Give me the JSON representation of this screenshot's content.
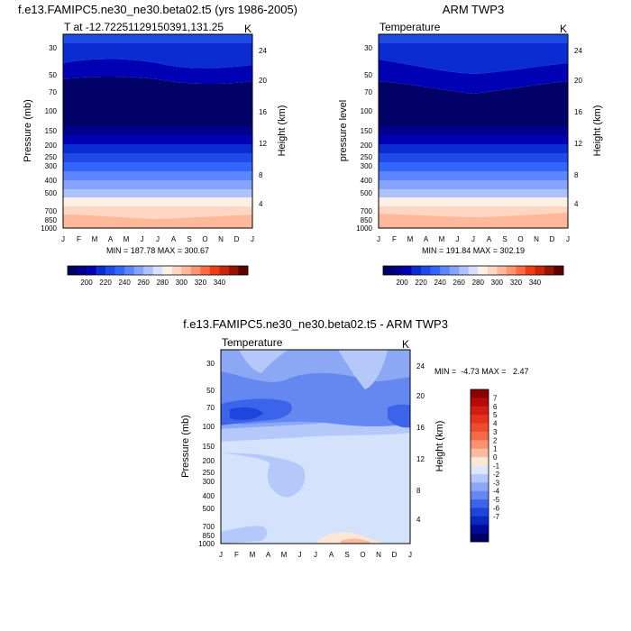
{
  "chart_data": [
    {
      "type": "heatmap",
      "title": "f.e13.FAMIPC5.ne30_ne30.beta02.t5 (yrs 1986-2005)",
      "subtitle_left": "T at -12.72251129150391,131.25",
      "subtitle_right": "K",
      "xlabel": "",
      "ylabel": "Pressure (mb)",
      "ylabel_right": "Height (km)",
      "x_ticks": [
        "J",
        "F",
        "M",
        "A",
        "M",
        "J",
        "J",
        "A",
        "S",
        "O",
        "N",
        "D",
        "J"
      ],
      "y_ticks": [
        "30",
        "50",
        "70",
        "100",
        "150",
        "200",
        "250",
        "300",
        "400",
        "500",
        "700",
        "850",
        "1000"
      ],
      "y_ticks_right": [
        "24",
        "20",
        "16",
        "12",
        "8",
        "4"
      ],
      "stats": "MIN = 187.78 MAX = 300.67",
      "colorbar_ticks": [
        "200",
        "220",
        "240",
        "260",
        "280",
        "300",
        "320",
        "340"
      ],
      "colorbar_colors": [
        "#000066",
        "#00008c",
        "#0000b4",
        "#0a2cd2",
        "#1e4be6",
        "#3366ff",
        "#5c85ff",
        "#85a3ff",
        "#adc2ff",
        "#d6e0ff",
        "#fff0e6",
        "#ffd6c2",
        "#ffb899",
        "#ff9470",
        "#ff6a42",
        "#f03c14",
        "#c8280a",
        "#961400",
        "#5f0000"
      ],
      "colorbar_min": 180,
      "colorbar_step": 10
    },
    {
      "type": "heatmap",
      "title": "ARM TWP3",
      "subtitle_left": "Temperature",
      "subtitle_right": "K",
      "xlabel": "",
      "ylabel": "pressure level",
      "ylabel_right": "Height (km)",
      "x_ticks": [
        "J",
        "F",
        "M",
        "A",
        "M",
        "J",
        "J",
        "A",
        "S",
        "O",
        "N",
        "D",
        "J"
      ],
      "y_ticks": [
        "30",
        "50",
        "70",
        "100",
        "150",
        "200",
        "250",
        "300",
        "400",
        "500",
        "700",
        "850",
        "1000"
      ],
      "y_ticks_right": [
        "24",
        "20",
        "16",
        "12",
        "8",
        "4"
      ],
      "stats": "MIN = 191.84 MAX = 302.19",
      "colorbar_ticks": [
        "200",
        "220",
        "240",
        "260",
        "280",
        "300",
        "320",
        "340"
      ],
      "colorbar_colors": [
        "#000066",
        "#00008c",
        "#0000b4",
        "#0a2cd2",
        "#1e4be6",
        "#3366ff",
        "#5c85ff",
        "#85a3ff",
        "#adc2ff",
        "#d6e0ff",
        "#fff0e6",
        "#ffd6c2",
        "#ffb899",
        "#ff9470",
        "#ff6a42",
        "#f03c14",
        "#c8280a",
        "#961400",
        "#5f0000"
      ],
      "colorbar_min": 180,
      "colorbar_step": 10
    },
    {
      "type": "heatmap",
      "title": "f.e13.FAMIPC5.ne30_ne30.beta02.t5 - ARM TWP3",
      "subtitle_left": "Temperature",
      "subtitle_right": "K",
      "xlabel": "",
      "ylabel": "Pressure (mb)",
      "ylabel_right": "Height (km)",
      "x_ticks": [
        "J",
        "F",
        "M",
        "A",
        "M",
        "J",
        "J",
        "A",
        "S",
        "O",
        "N",
        "D",
        "J"
      ],
      "y_ticks": [
        "30",
        "50",
        "70",
        "100",
        "150",
        "200",
        "250",
        "300",
        "400",
        "500",
        "700",
        "850",
        "1000"
      ],
      "y_ticks_right": [
        "24",
        "20",
        "16",
        "12",
        "8",
        "4"
      ],
      "stats": "MIN =  -4.73 MAX =   2.47",
      "colorbar_ticks": [
        "7",
        "6",
        "5",
        "4",
        "3",
        "2",
        "1",
        "0",
        "-1",
        "-2",
        "-3",
        "-4",
        "-5",
        "-6",
        "-7"
      ],
      "colorbar_colors": [
        "#8c0000",
        "#b40a0a",
        "#d21e14",
        "#e6321e",
        "#f04b2d",
        "#f56a46",
        "#fa9173",
        "#fcbaa0",
        "#fee6d6",
        "#dce8fa",
        "#b4c8fa",
        "#8ca8f5",
        "#6488f0",
        "#3c64eb",
        "#1e46dc",
        "#0a28be",
        "#000a96",
        "#000064"
      ]
    }
  ]
}
